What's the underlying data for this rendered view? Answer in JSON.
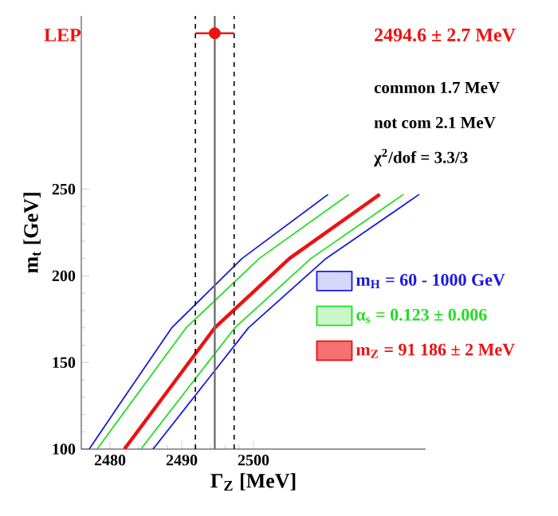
{
  "chart_data": {
    "type": "line",
    "title": "LEP",
    "xlabel": "Γ$_{Z}$ [MeV]",
    "ylabel": "m$_{t}$ [GeV]",
    "annotations": [
      "2494.6 ± 2.7 MeV",
      "common  1.7 MeV",
      "not com   2.1 MeV",
      "χ$^{2}$/dof =  3.3/3"
    ],
    "xlim": [
      2476,
      2524
    ],
    "xticks": [
      2480,
      2490,
      2500
    ],
    "ylim": [
      100,
      350
    ],
    "yticks": [
      100,
      150,
      200,
      250
    ],
    "legend": "right",
    "ref_lines": [
      {
        "axis": "x",
        "value": 2494.6,
        "color": "#707070",
        "line_style": "solid"
      },
      {
        "axis": "x",
        "value": 2491.9,
        "color": "#000000",
        "line_style": "dashed"
      },
      {
        "axis": "x",
        "value": 2497.3,
        "color": "#000000",
        "line_style": "dashed"
      }
    ],
    "series": [
      {
        "name": "m$_{H}$ = 60 - 1000 GeV",
        "color": "#1a1adc",
        "x": [
          2477.1,
          2482.0,
          2488.6,
          2498.4,
          2510.4
        ],
        "values": [
          100,
          130,
          170,
          210,
          247
        ]
      },
      {
        "color": "#1a1adc",
        "x": [
          2486.0,
          2491.7,
          2499.3,
          2510.1,
          2523.1
        ],
        "values": [
          100,
          130,
          170,
          210,
          247
        ]
      },
      {
        "name": "α$_{s}$ = 0.123 ± 0.006",
        "color": "#22dd22",
        "x": [
          2478.2,
          2483.5,
          2490.6,
          2500.8,
          2513.3
        ],
        "values": [
          100,
          130,
          170,
          210,
          247
        ]
      },
      {
        "color": "#22dd22",
        "x": [
          2484.3,
          2489.9,
          2497.4,
          2508.0,
          2520.9
        ],
        "values": [
          100,
          130,
          170,
          210,
          247
        ]
      },
      {
        "name": "m$_{Z}$ = 91 186 ± 2 MeV",
        "color": "#ee1111",
        "x": [
          2482.0,
          2487.4,
          2494.6,
          2505.0,
          2517.6
        ],
        "values": [
          100,
          130,
          170,
          210,
          247
        ]
      },
      {
        "type": "scatter",
        "color": "#ee1111",
        "x": [
          2494.6
        ],
        "values": [
          340
        ],
        "xerrors": [
          2.7
        ]
      }
    ]
  }
}
